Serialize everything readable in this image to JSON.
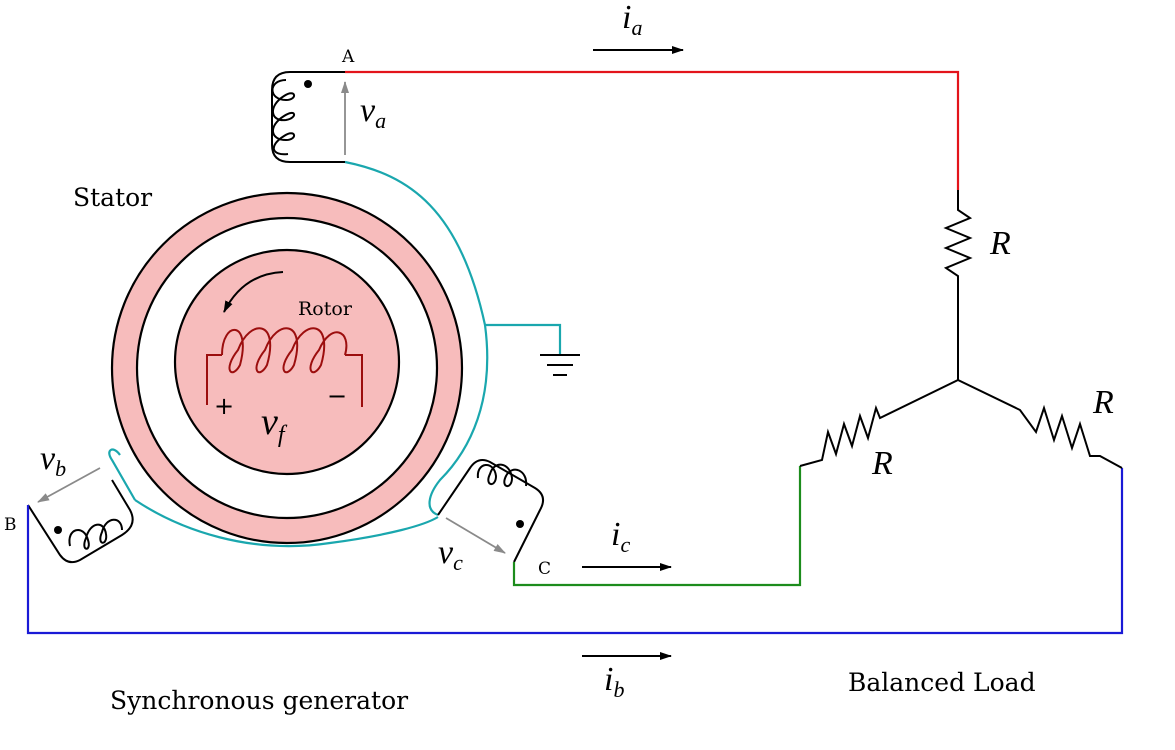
{
  "labels": {
    "stator": "Stator",
    "rotor": "Rotor",
    "generator": "Synchronous generator",
    "balanced_load": "Balanced Load",
    "terminal_a": "A",
    "terminal_b": "B",
    "terminal_c": "C",
    "plus": "+",
    "minus": "−",
    "resistor_a": "R",
    "resistor_b": "R",
    "resistor_c": "R"
  },
  "symbols": {
    "v_a": {
      "base": "v",
      "sub": "a"
    },
    "v_b": {
      "base": "v",
      "sub": "b"
    },
    "v_c": {
      "base": "v",
      "sub": "c"
    },
    "v_f": {
      "base": "v",
      "sub": "f"
    },
    "i_a": {
      "base": "i",
      "sub": "a"
    },
    "i_b": {
      "base": "i",
      "sub": "b"
    },
    "i_c": {
      "base": "i",
      "sub": "c"
    }
  },
  "colors": {
    "phase_a": "#e3141b",
    "phase_b": "#1a1ad6",
    "phase_c": "#1c8c1c",
    "neutral": "#1aa7ae",
    "stator_fill": "#f7bcbc",
    "rotor_coil": "#9c0e0e",
    "voltage_arrow": "#8a8a8a",
    "ink": "#000000"
  }
}
